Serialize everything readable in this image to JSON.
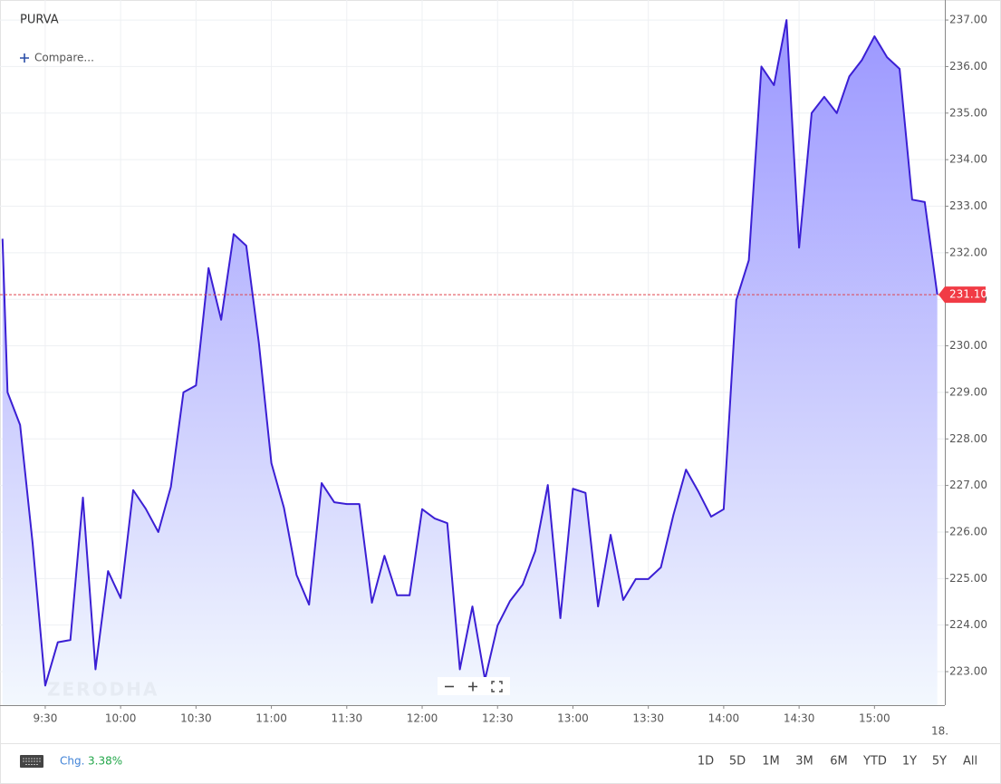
{
  "chart_data": {
    "type": "area",
    "title": "PURVA",
    "x": [
      "9:13",
      "9:15",
      "9:20",
      "9:25",
      "9:30",
      "9:35",
      "9:40",
      "9:45",
      "9:50",
      "9:55",
      "10:00",
      "10:05",
      "10:10",
      "10:15",
      "10:20",
      "10:25",
      "10:30",
      "10:35",
      "10:40",
      "10:45",
      "10:50",
      "10:55",
      "11:00",
      "11:05",
      "11:10",
      "11:15",
      "11:20",
      "11:25",
      "11:30",
      "11:35",
      "11:40",
      "11:45",
      "11:50",
      "11:55",
      "12:00",
      "12:05",
      "12:10",
      "12:15",
      "12:20",
      "12:25",
      "12:30",
      "12:35",
      "12:40",
      "12:45",
      "12:50",
      "12:55",
      "13:00",
      "13:05",
      "13:10",
      "13:15",
      "13:20",
      "13:25",
      "13:30",
      "13:35",
      "13:40",
      "13:45",
      "13:50",
      "13:55",
      "14:00",
      "14:05",
      "14:10",
      "14:15",
      "14:20",
      "14:25",
      "14:30",
      "14:35",
      "14:40",
      "14:45",
      "14:50",
      "14:55",
      "15:00",
      "15:05",
      "15:10",
      "15:15",
      "15:20",
      "15:25"
    ],
    "series": [
      {
        "name": "PURVA",
        "color": "#3b1fd4",
        "values": [
          232.3,
          229.0,
          228.3,
          225.75,
          222.7,
          223.63,
          223.68,
          226.74,
          223.05,
          225.16,
          224.58,
          226.9,
          226.5,
          226.0,
          226.97,
          229.0,
          229.15,
          231.67,
          230.56,
          232.4,
          232.15,
          230.07,
          227.48,
          226.52,
          225.08,
          224.44,
          227.05,
          226.64,
          226.6,
          226.6,
          224.48,
          225.49,
          224.64,
          224.64,
          226.49,
          226.29,
          226.19,
          223.05,
          224.4,
          222.83,
          223.99,
          224.52,
          224.87,
          225.59,
          227.01,
          224.15,
          226.93,
          226.84,
          224.4,
          225.94,
          224.54,
          224.99,
          224.99,
          225.24,
          226.37,
          227.34,
          226.86,
          226.33,
          226.49,
          230.98,
          231.84,
          236.0,
          235.6,
          237.0,
          232.11,
          235.0,
          235.35,
          235.0,
          235.79,
          236.14,
          236.65,
          236.2,
          235.95,
          233.14,
          233.09,
          231.1
        ]
      }
    ],
    "xlim": [
      "9:12",
      "15:28"
    ],
    "xticks": [
      "9:30",
      "10:00",
      "10:30",
      "11:00",
      "11:30",
      "12:00",
      "12:30",
      "13:00",
      "13:30",
      "14:00",
      "14:30",
      "15:00"
    ],
    "next_day_label": "18.",
    "ylim": [
      222.28,
      237.43
    ],
    "yticks": [
      {
        "value": 223,
        "label": "223.00"
      },
      {
        "value": 224,
        "label": "224.00"
      },
      {
        "value": 225,
        "label": "225.00"
      },
      {
        "value": 226,
        "label": "226.00"
      },
      {
        "value": 227,
        "label": "227.00"
      },
      {
        "value": 228,
        "label": "228.00"
      },
      {
        "value": 229,
        "label": "229.00"
      },
      {
        "value": 230,
        "label": "230.00"
      },
      {
        "value": 231,
        "label": "231.00"
      },
      {
        "value": 232,
        "label": "232.00"
      },
      {
        "value": 233,
        "label": "233.00"
      },
      {
        "value": 234,
        "label": "234.00"
      },
      {
        "value": 235,
        "label": "235.00"
      },
      {
        "value": 236,
        "label": "236.00"
      },
      {
        "value": 237,
        "label": "237.00"
      }
    ],
    "last_price": {
      "value": 231.1,
      "label": "231.10"
    },
    "grid": true
  },
  "ui": {
    "compare": "Compare...",
    "watermark": "ZERODHA",
    "change_label": "Chg.",
    "change_value": "3.38%",
    "ranges": [
      "1D",
      "5D",
      "1M",
      "3M",
      "6M",
      "YTD",
      "1Y",
      "5Y",
      "All"
    ]
  }
}
